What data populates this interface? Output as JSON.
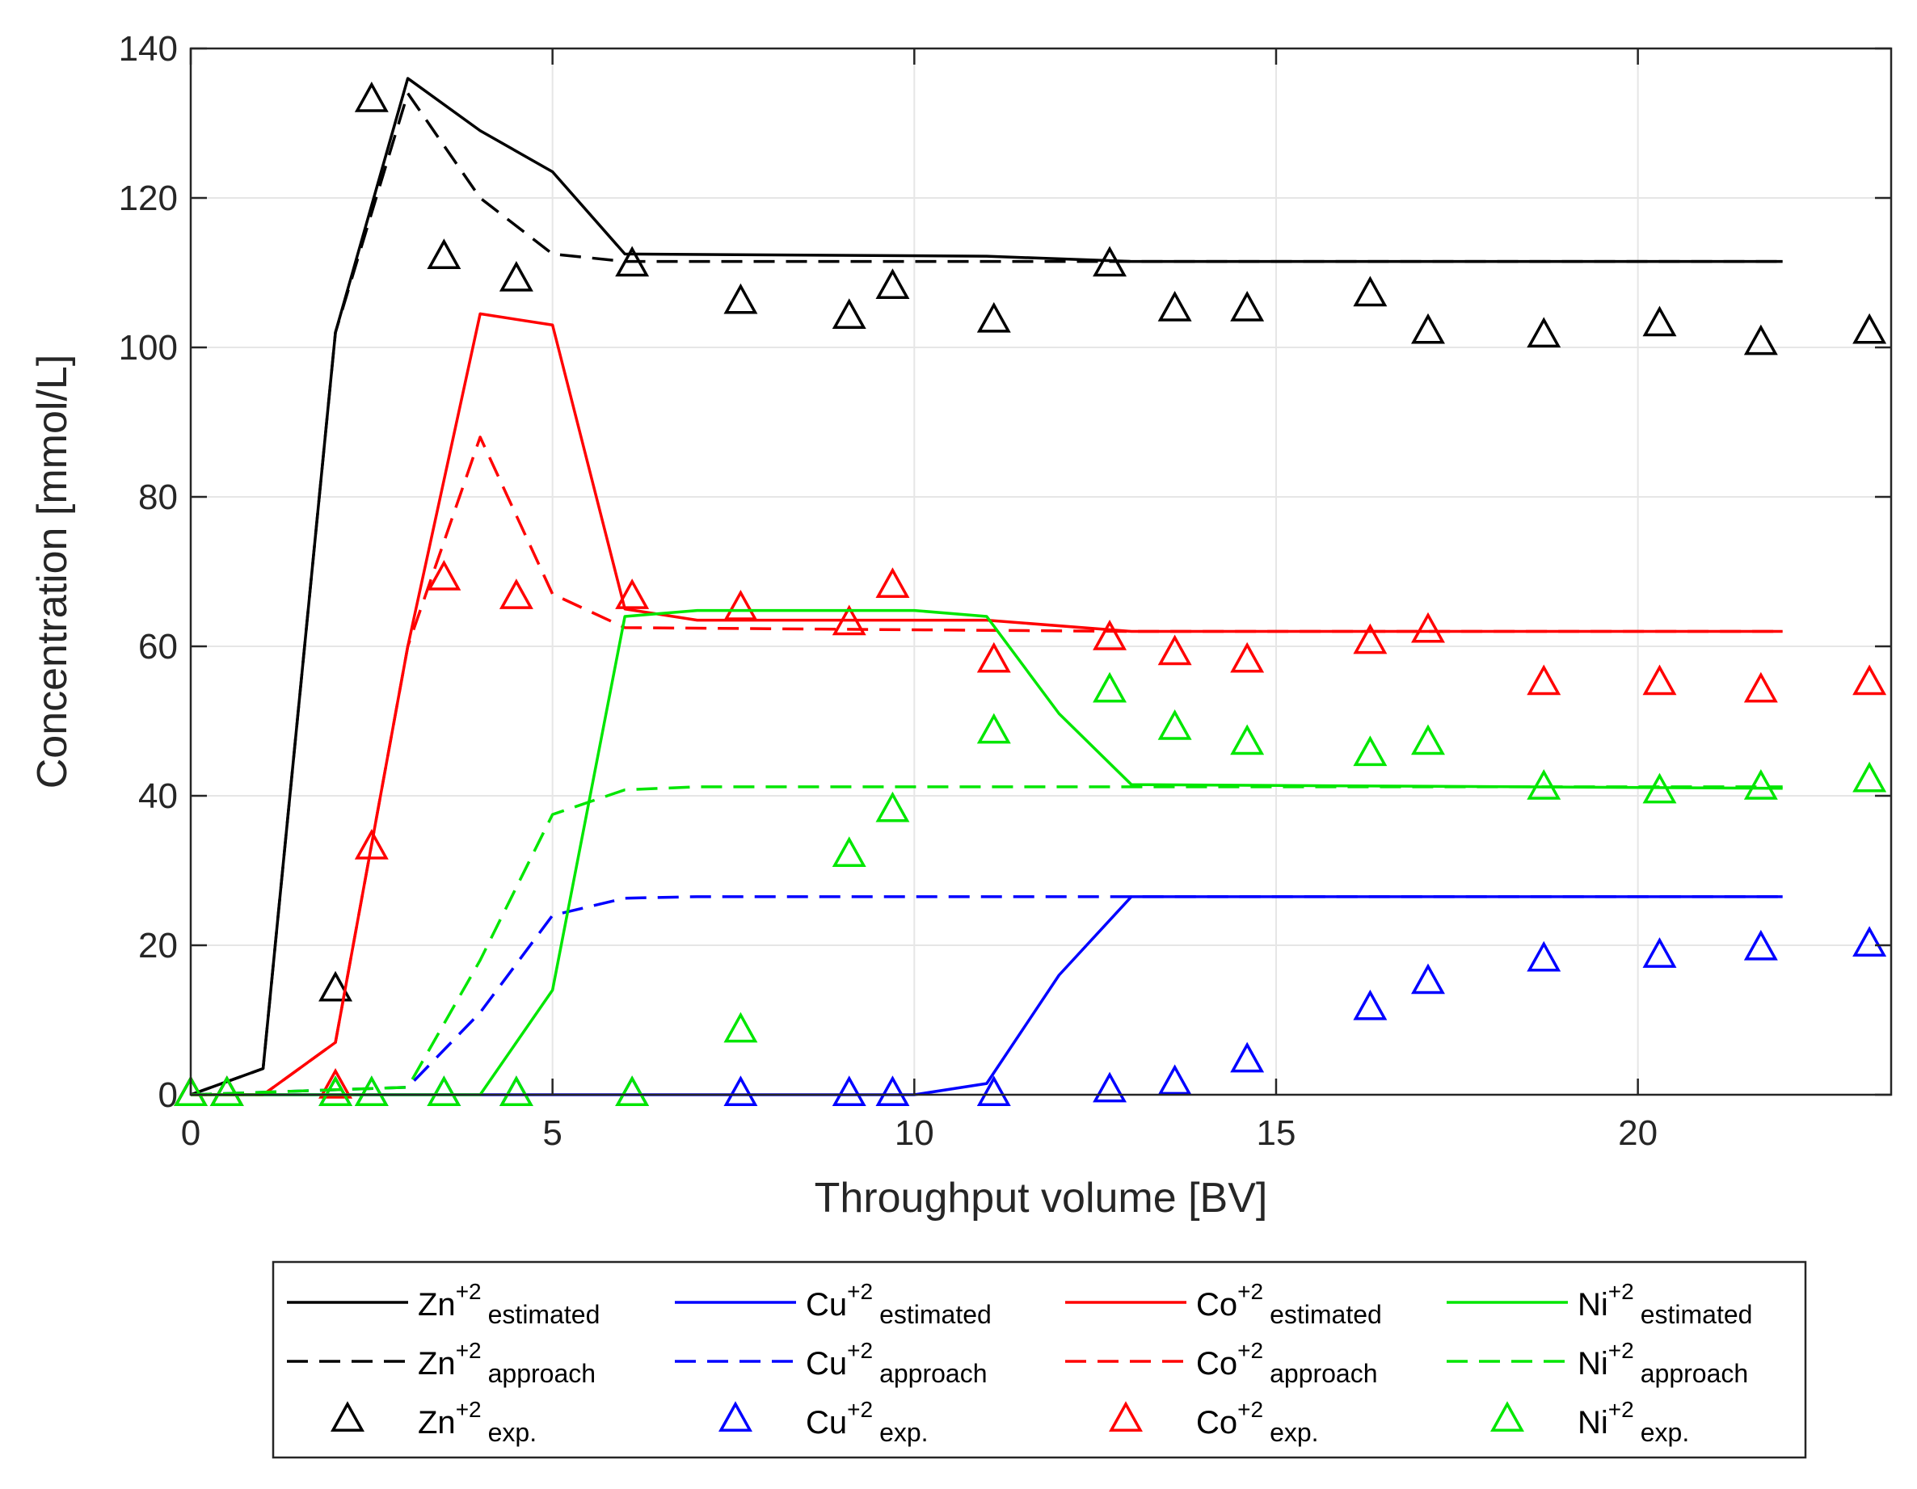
{
  "chart_data": {
    "type": "line",
    "title": "",
    "xlabel": "Throughput volume [BV]",
    "ylabel": "Concentration [mmol/L]",
    "xlim": [
      0,
      23.5
    ],
    "ylim": [
      0,
      140
    ],
    "xticks": [
      0,
      5,
      10,
      15,
      20
    ],
    "yticks": [
      0,
      20,
      40,
      60,
      80,
      100,
      120,
      140
    ],
    "grid": true,
    "legend_placement": "bottom",
    "series": [
      {
        "key": "zn_est",
        "ion": "Zn",
        "charge": "+2",
        "suffix": "estimated",
        "kind": "line",
        "dash": "solid",
        "color": "#000000",
        "x": [
          0,
          1,
          2,
          3,
          4,
          5,
          6,
          11,
          13,
          22
        ],
        "y": [
          0,
          3.5,
          102,
          136,
          129,
          123.5,
          112.5,
          112.2,
          111.5,
          111.5
        ]
      },
      {
        "key": "zn_app",
        "ion": "Zn",
        "charge": "+2",
        "suffix": "approach",
        "kind": "line",
        "dash": "dashed",
        "color": "#000000",
        "x": [
          0,
          1,
          2,
          3,
          4,
          5,
          6,
          10,
          13,
          22
        ],
        "y": [
          0,
          3.5,
          102,
          134,
          120,
          112.5,
          111.5,
          111.5,
          111.5,
          111.5
        ]
      },
      {
        "key": "zn_exp",
        "ion": "Zn",
        "charge": "+2",
        "suffix": "exp.",
        "kind": "marker",
        "color": "#000000",
        "x": [
          0,
          0.5,
          2,
          2.5,
          3.5,
          4.5,
          6.1,
          7.6,
          9.1,
          9.7,
          11.1,
          12.7,
          13.6,
          14.6,
          16.3,
          17.1,
          18.7,
          20.3,
          21.7,
          23.2
        ],
        "y": [
          0,
          0,
          14,
          133,
          112,
          109,
          111,
          106,
          104,
          108,
          103.5,
          111,
          105,
          105,
          107,
          102,
          101.5,
          103,
          100.5,
          102
        ]
      },
      {
        "key": "cu_est",
        "ion": "Cu",
        "charge": "+2",
        "suffix": "estimated",
        "kind": "line",
        "dash": "solid",
        "color": "#0000ff",
        "x": [
          0,
          10,
          11,
          12,
          13,
          22
        ],
        "y": [
          0,
          0,
          1.5,
          16,
          26.5,
          26.5
        ]
      },
      {
        "key": "cu_app",
        "ion": "Cu",
        "charge": "+2",
        "suffix": "approach",
        "kind": "line",
        "dash": "dashed",
        "color": "#0000ff",
        "x": [
          0,
          3,
          4,
          5,
          6,
          7,
          22
        ],
        "y": [
          0,
          1,
          11,
          24,
          26.3,
          26.5,
          26.5
        ]
      },
      {
        "key": "cu_exp",
        "ion": "Cu",
        "charge": "+2",
        "suffix": "exp.",
        "kind": "marker",
        "color": "#0000ff",
        "x": [
          0,
          0.5,
          2,
          2.5,
          3.5,
          4.5,
          6.1,
          7.6,
          9.1,
          9.7,
          11.1,
          12.7,
          13.6,
          14.6,
          16.3,
          17.1,
          18.7,
          20.3,
          21.7,
          23.2
        ],
        "y": [
          0,
          0,
          0,
          0,
          0,
          0,
          0,
          0,
          0,
          0,
          0,
          0.5,
          1.5,
          4.5,
          11.5,
          15,
          18,
          18.5,
          19.5,
          20
        ]
      },
      {
        "key": "co_est",
        "ion": "Co",
        "charge": "+2",
        "suffix": "estimated",
        "kind": "line",
        "dash": "solid",
        "color": "#ff0000",
        "x": [
          0,
          1,
          2,
          3,
          4,
          5,
          6,
          7,
          11,
          13,
          22
        ],
        "y": [
          0,
          0,
          7,
          60,
          104.5,
          103,
          65,
          63.5,
          63.5,
          62,
          62
        ]
      },
      {
        "key": "co_app",
        "ion": "Co",
        "charge": "+2",
        "suffix": "approach",
        "kind": "line",
        "dash": "dashed",
        "color": "#ff0000",
        "x": [
          0,
          1,
          2,
          3,
          4,
          5,
          6,
          13,
          22
        ],
        "y": [
          0,
          0,
          7,
          60,
          88,
          67,
          62.5,
          62,
          62
        ]
      },
      {
        "key": "co_exp",
        "ion": "Co",
        "charge": "+2",
        "suffix": "exp.",
        "kind": "marker",
        "color": "#ff0000",
        "x": [
          0,
          0.5,
          2,
          2.5,
          3.5,
          4.5,
          6.1,
          7.6,
          9.1,
          9.7,
          11.1,
          12.7,
          13.6,
          14.6,
          16.3,
          17.1,
          18.7,
          20.3,
          21.7,
          23.2
        ],
        "y": [
          0,
          0,
          1,
          33,
          69,
          66.5,
          66.5,
          65,
          63,
          68,
          58,
          61,
          59,
          58,
          60.5,
          62,
          55,
          55,
          54,
          55
        ]
      },
      {
        "key": "ni_est",
        "ion": "Ni",
        "charge": "+2",
        "suffix": "estimated",
        "kind": "line",
        "dash": "solid",
        "color": "#00e600",
        "x": [
          0,
          4,
          5,
          6,
          7,
          10,
          11,
          12,
          13,
          22
        ],
        "y": [
          0,
          0,
          14,
          64,
          64.8,
          64.8,
          64,
          51,
          41.5,
          41
        ]
      },
      {
        "key": "ni_app",
        "ion": "Ni",
        "charge": "+2",
        "suffix": "approach",
        "kind": "line",
        "dash": "dashed",
        "color": "#00e600",
        "x": [
          0,
          3,
          4,
          5,
          6,
          7,
          22
        ],
        "y": [
          0,
          1,
          18,
          37.5,
          40.8,
          41.2,
          41.2
        ]
      },
      {
        "key": "ni_exp",
        "ion": "Ni",
        "charge": "+2",
        "suffix": "exp.",
        "kind": "marker",
        "color": "#00e600",
        "x": [
          0,
          0.5,
          2,
          2.5,
          3.5,
          4.5,
          6.1,
          7.6,
          9.1,
          9.7,
          11.1,
          12.7,
          13.6,
          14.6,
          16.3,
          17.1,
          18.7,
          20.3,
          21.7,
          23.2
        ],
        "y": [
          0,
          0,
          0,
          0,
          0,
          0,
          0,
          8.5,
          32,
          38,
          48.5,
          54,
          49,
          47,
          45.5,
          47,
          41,
          40.5,
          41,
          42
        ]
      }
    ],
    "legend": [
      {
        "series": "zn_est",
        "ion": "Zn",
        "charge": "+2",
        "suffix": "estimated"
      },
      {
        "series": "cu_est",
        "ion": "Cu",
        "charge": "+2",
        "suffix": "estimated"
      },
      {
        "series": "co_est",
        "ion": "Co",
        "charge": "+2",
        "suffix": "estimated"
      },
      {
        "series": "ni_est",
        "ion": "Ni",
        "charge": "+2",
        "suffix": "estimated"
      },
      {
        "series": "zn_app",
        "ion": "Zn",
        "charge": "+2",
        "suffix": "approach"
      },
      {
        "series": "cu_app",
        "ion": "Cu",
        "charge": "+2",
        "suffix": "approach"
      },
      {
        "series": "co_app",
        "ion": "Co",
        "charge": "+2",
        "suffix": "approach"
      },
      {
        "series": "ni_app",
        "ion": "Ni",
        "charge": "+2",
        "suffix": "approach"
      },
      {
        "series": "zn_exp",
        "ion": "Zn",
        "charge": "+2",
        "suffix": "exp."
      },
      {
        "series": "cu_exp",
        "ion": "Cu",
        "charge": "+2",
        "suffix": "exp."
      },
      {
        "series": "co_exp",
        "ion": "Co",
        "charge": "+2",
        "suffix": "exp."
      },
      {
        "series": "ni_exp",
        "ion": "Ni",
        "charge": "+2",
        "suffix": "exp."
      }
    ]
  }
}
